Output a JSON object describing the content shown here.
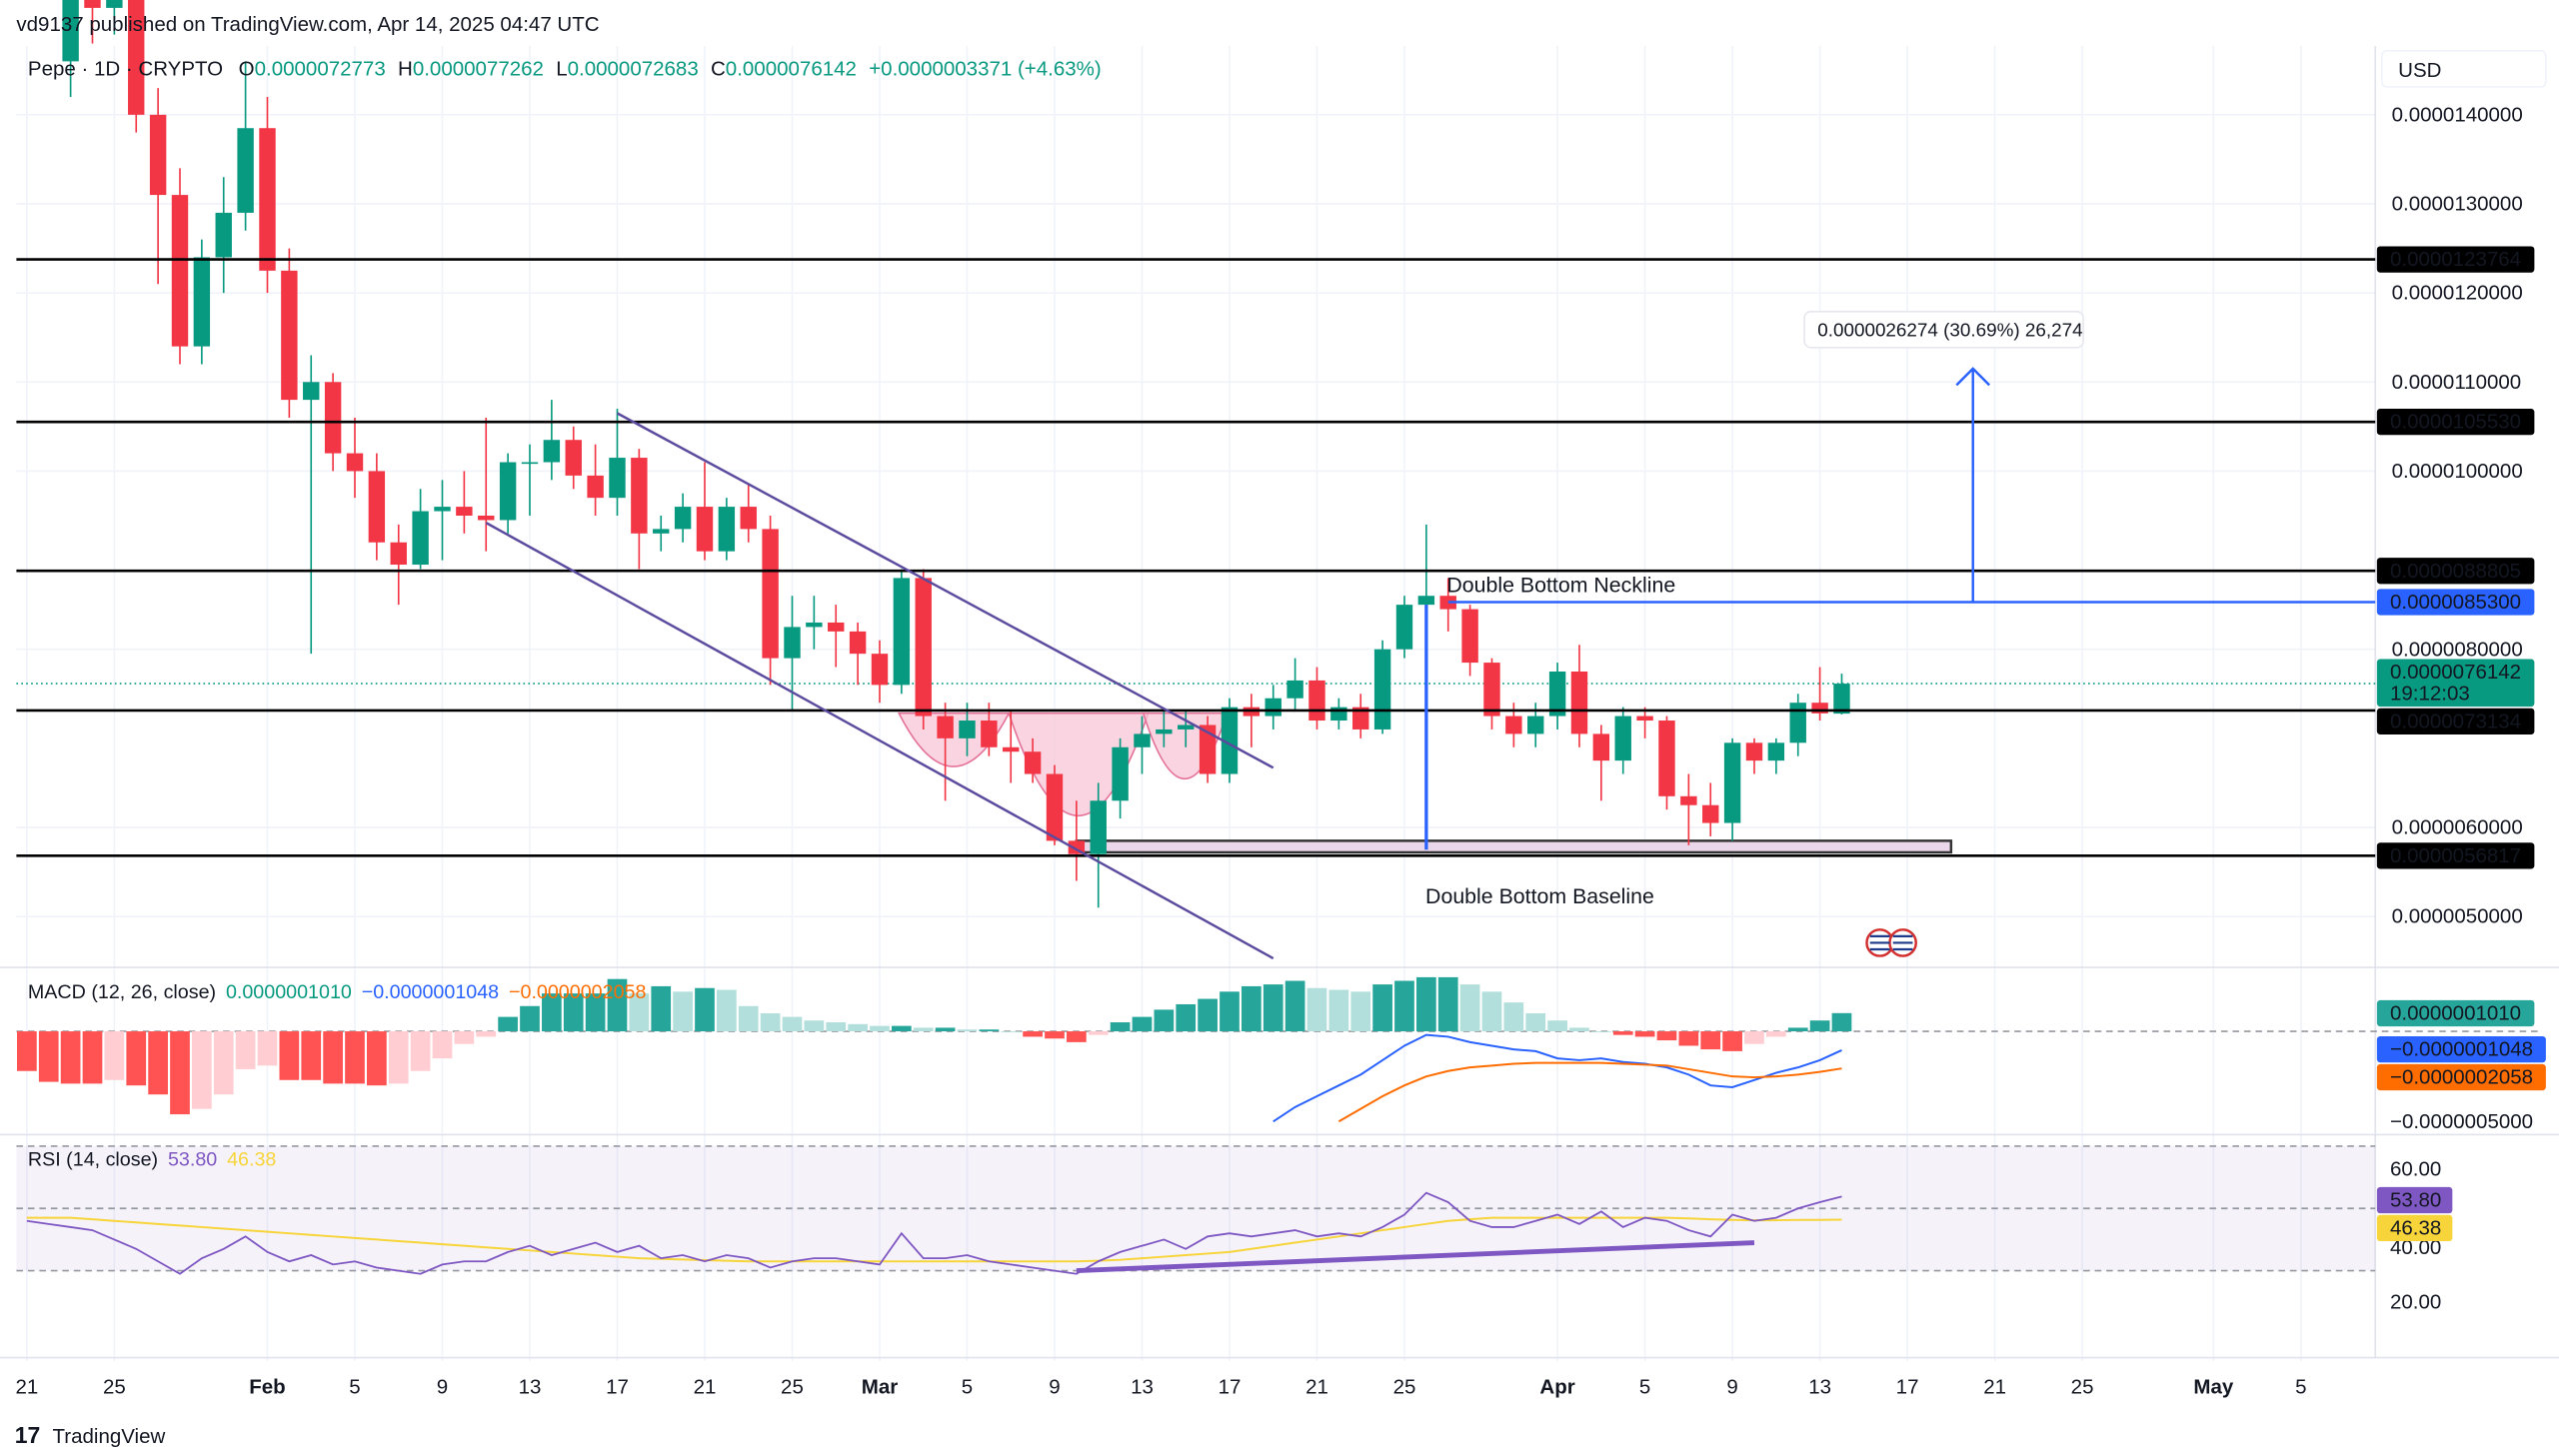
{
  "header": {
    "published": "vd9137 published on TradingView.com, Apr 14, 2025 04:47 UTC",
    "symbol": "Pepe · 1D · CRYPTO",
    "o_label": "O",
    "o_value": "0.0000072773",
    "h_label": "H",
    "h_value": "0.0000077262",
    "l_label": "L",
    "l_value": "0.0000072683",
    "c_label": "C",
    "c_value": "0.0000076142",
    "change": "+0.0000003371 (+4.63%)",
    "currency": "USD"
  },
  "footer": {
    "logo_text": "TradingView"
  },
  "colors": {
    "up": "#089981",
    "down": "#f23645",
    "macd_hist_up_strong": "#26a69a",
    "macd_hist_up_weak": "#b2dfdb",
    "macd_hist_down_strong": "#ff5252",
    "macd_hist_down_weak": "#ffcdd2",
    "macd_line": "#2962ff",
    "signal_line": "#ff6d00",
    "rsi_line": "#7e57c2",
    "rsi_ma": "#f7d53a",
    "drawing_blue": "#2962ff",
    "channel": "#5b4a9e",
    "pattern_fill": "#f8c6d6"
  },
  "annotations": {
    "neckline_label": "Double Bottom Neckline",
    "baseline_label": "Double Bottom Baseline",
    "measure_label": "0.0000026274 (30.69%) 26,274"
  },
  "chart_data": [
    {
      "type": "candlestick",
      "title": "Pepe · 1D · CRYPTO",
      "ylabel": "USD",
      "ylim": [
        4.6e-06,
        1.55e-05
      ],
      "xlim": [
        "2025-01-21",
        "2025-05-08"
      ],
      "y_ticks": [
        "0.0000140000",
        "0.0000130000",
        "0.0000120000",
        "0.0000110000",
        "0.0000100000",
        "0.0000080000",
        "0.0000060000",
        "0.0000050000"
      ],
      "y_tick_values": [
        1.4e-05,
        1.3e-05,
        1.2e-05,
        1.1e-05,
        1e-05,
        8e-06,
        6e-06,
        5e-06
      ],
      "x_ticks": [
        {
          "date": "2025-01-21",
          "label": "21"
        },
        {
          "date": "2025-01-25",
          "label": "25"
        },
        {
          "date": "2025-02-01",
          "label": "Feb"
        },
        {
          "date": "2025-02-05",
          "label": "5"
        },
        {
          "date": "2025-02-09",
          "label": "9"
        },
        {
          "date": "2025-02-13",
          "label": "13"
        },
        {
          "date": "2025-02-17",
          "label": "17"
        },
        {
          "date": "2025-02-21",
          "label": "21"
        },
        {
          "date": "2025-02-25",
          "label": "25"
        },
        {
          "date": "2025-03-01",
          "label": "Mar"
        },
        {
          "date": "2025-03-05",
          "label": "5"
        },
        {
          "date": "2025-03-09",
          "label": "9"
        },
        {
          "date": "2025-03-13",
          "label": "13"
        },
        {
          "date": "2025-03-17",
          "label": "17"
        },
        {
          "date": "2025-03-21",
          "label": "21"
        },
        {
          "date": "2025-03-25",
          "label": "25"
        },
        {
          "date": "2025-04-01",
          "label": "Apr"
        },
        {
          "date": "2025-04-05",
          "label": "5"
        },
        {
          "date": "2025-04-09",
          "label": "9"
        },
        {
          "date": "2025-04-13",
          "label": "13"
        },
        {
          "date": "2025-04-17",
          "label": "17"
        },
        {
          "date": "2025-04-21",
          "label": "21"
        },
        {
          "date": "2025-04-25",
          "label": "25"
        },
        {
          "date": "2025-05-01",
          "label": "May"
        },
        {
          "date": "2025-05-05",
          "label": "5"
        }
      ],
      "grid": true,
      "candles_start": "2025-01-23",
      "candles_ohlc": [
        [
          1.46e-05,
          1.6e-05,
          1.42e-05,
          1.54e-05
        ],
        [
          1.54e-05,
          1.62e-05,
          1.48e-05,
          1.52e-05
        ],
        [
          1.52e-05,
          1.63e-05,
          1.49e-05,
          1.59e-05
        ],
        [
          1.59e-05,
          1.6e-05,
          1.38e-05,
          1.4e-05
        ],
        [
          1.4e-05,
          1.43e-05,
          1.21e-05,
          1.31e-05
        ],
        [
          1.31e-05,
          1.34e-05,
          1.12e-05,
          1.14e-05
        ],
        [
          1.14e-05,
          1.26e-05,
          1.12e-05,
          1.24e-05
        ],
        [
          1.24e-05,
          1.33e-05,
          1.2e-05,
          1.29e-05
        ],
        [
          1.29e-05,
          1.46e-05,
          1.27e-05,
          1.385e-05
        ],
        [
          1.385e-05,
          1.42e-05,
          1.2e-05,
          1.225e-05
        ],
        [
          1.225e-05,
          1.25e-05,
          1.06e-05,
          1.08e-05
        ],
        [
          1.08e-05,
          1.13e-05,
          7.95e-06,
          1.1e-05
        ],
        [
          1.1e-05,
          1.11e-05,
          1e-05,
          1.02e-05
        ],
        [
          1.02e-05,
          1.06e-05,
          9.7e-06,
          1e-05
        ],
        [
          1e-05,
          1.02e-05,
          9e-06,
          9.2e-06
        ],
        [
          9.2e-06,
          9.4e-06,
          8.5e-06,
          8.95e-06
        ],
        [
          8.95e-06,
          9.8e-06,
          8.9e-06,
          9.55e-06
        ],
        [
          9.55e-06,
          9.9e-06,
          9e-06,
          9.6e-06
        ],
        [
          9.6e-06,
          1e-05,
          9.3e-06,
          9.5e-06
        ],
        [
          9.5e-06,
          1.06e-05,
          9.1e-06,
          9.45e-06
        ],
        [
          9.45e-06,
          1.02e-05,
          9.3e-06,
          1.01e-05
        ],
        [
          1.01e-05,
          1.03e-05,
          9.5e-06,
          1.01e-05
        ],
        [
          1.01e-05,
          1.08e-05,
          9.9e-06,
          1.035e-05
        ],
        [
          1.035e-05,
          1.05e-05,
          9.8e-06,
          9.95e-06
        ],
        [
          9.95e-06,
          1.03e-05,
          9.5e-06,
          9.7e-06
        ],
        [
          9.7e-06,
          1.07e-05,
          9.5e-06,
          1.015e-05
        ],
        [
          1.015e-05,
          1.025e-05,
          8.9e-06,
          9.3e-06
        ],
        [
          9.3e-06,
          9.5e-06,
          9.1e-06,
          9.35e-06
        ],
        [
          9.35e-06,
          9.75e-06,
          9.2e-06,
          9.6e-06
        ],
        [
          9.6e-06,
          1.01e-05,
          9e-06,
          9.1e-06
        ],
        [
          9.1e-06,
          9.7e-06,
          9e-06,
          9.6e-06
        ],
        [
          9.6e-06,
          9.85e-06,
          9.2e-06,
          9.35e-06
        ],
        [
          9.35e-06,
          9.5e-06,
          7.6e-06,
          7.9e-06
        ],
        [
          7.9e-06,
          8.6e-06,
          7.3e-06,
          8.25e-06
        ],
        [
          8.25e-06,
          8.6e-06,
          8e-06,
          8.3e-06
        ],
        [
          8.3e-06,
          8.5e-06,
          7.8e-06,
          8.2e-06
        ],
        [
          8.2e-06,
          8.3e-06,
          7.6e-06,
          7.95e-06
        ],
        [
          7.95e-06,
          8.1e-06,
          7.4e-06,
          7.6e-06
        ],
        [
          7.6e-06,
          8.9e-06,
          7.5e-06,
          8.8e-06
        ],
        [
          8.8e-06,
          8.9e-06,
          7.1e-06,
          7.25e-06
        ],
        [
          7.25e-06,
          7.4e-06,
          6.3e-06,
          7e-06
        ],
        [
          7e-06,
          7.4e-06,
          6.8e-06,
          7.2e-06
        ],
        [
          7.2e-06,
          7.4e-06,
          6.8e-06,
          6.9e-06
        ],
        [
          6.9e-06,
          7.3e-06,
          6.5e-06,
          6.85e-06
        ],
        [
          6.85e-06,
          7e-06,
          6.5e-06,
          6.6e-06
        ],
        [
          6.6e-06,
          6.7e-06,
          5.8e-06,
          5.85e-06
        ],
        [
          5.85e-06,
          6.3e-06,
          5.4e-06,
          5.7e-06
        ],
        [
          5.7e-06,
          6.5e-06,
          5.1e-06,
          6.3e-06
        ],
        [
          6.3e-06,
          7e-06,
          6.1e-06,
          6.9e-06
        ],
        [
          6.9e-06,
          7.25e-06,
          6.6e-06,
          7.05e-06
        ],
        [
          7.05e-06,
          7.3e-06,
          6.9e-06,
          7.1e-06
        ],
        [
          7.1e-06,
          7.3e-06,
          6.9e-06,
          7.15e-06
        ],
        [
          7.15e-06,
          7.25e-06,
          6.5e-06,
          6.6e-06
        ],
        [
          6.6e-06,
          7.45e-06,
          6.5e-06,
          7.35e-06
        ],
        [
          7.35e-06,
          7.5e-06,
          6.9e-06,
          7.25e-06
        ],
        [
          7.25e-06,
          7.6e-06,
          7.1e-06,
          7.45e-06
        ],
        [
          7.45e-06,
          7.9e-06,
          7.3e-06,
          7.65e-06
        ],
        [
          7.65e-06,
          7.8e-06,
          7.1e-06,
          7.2e-06
        ],
        [
          7.2e-06,
          7.45e-06,
          7.1e-06,
          7.35e-06
        ],
        [
          7.35e-06,
          7.5e-06,
          7e-06,
          7.1e-06
        ],
        [
          7.1e-06,
          8.1e-06,
          7.05e-06,
          8e-06
        ],
        [
          8e-06,
          8.6e-06,
          7.9e-06,
          8.5e-06
        ],
        [
          8.5e-06,
          9.4e-06,
          8.3e-06,
          8.6e-06
        ],
        [
          8.6e-06,
          8.8e-06,
          8.2e-06,
          8.45e-06
        ],
        [
          8.45e-06,
          8.5e-06,
          7.7e-06,
          7.85e-06
        ],
        [
          7.85e-06,
          7.9e-06,
          7.1e-06,
          7.25e-06
        ],
        [
          7.25e-06,
          7.4e-06,
          6.9e-06,
          7.05e-06
        ],
        [
          7.05e-06,
          7.4e-06,
          6.9e-06,
          7.25e-06
        ],
        [
          7.25e-06,
          7.85e-06,
          7.1e-06,
          7.75e-06
        ],
        [
          7.75e-06,
          8.05e-06,
          6.9e-06,
          7.05e-06
        ],
        [
          7.05e-06,
          7.15e-06,
          6.3e-06,
          6.75e-06
        ],
        [
          6.75e-06,
          7.35e-06,
          6.6e-06,
          7.25e-06
        ],
        [
          7.25e-06,
          7.35e-06,
          7e-06,
          7.2e-06
        ],
        [
          7.2e-06,
          7.25e-06,
          6.2e-06,
          6.35e-06
        ],
        [
          6.35e-06,
          6.6e-06,
          5.8e-06,
          6.25e-06
        ],
        [
          6.25e-06,
          6.5e-06,
          5.9e-06,
          6.05e-06
        ],
        [
          6.05e-06,
          7e-06,
          5.85e-06,
          6.95e-06
        ],
        [
          6.95e-06,
          7e-06,
          6.6e-06,
          6.75e-06
        ],
        [
          6.75e-06,
          7e-06,
          6.6e-06,
          6.95e-06
        ],
        [
          6.95e-06,
          7.5e-06,
          6.8e-06,
          7.4e-06
        ],
        [
          7.4e-06,
          7.8e-06,
          7.2e-06,
          7.28e-06
        ],
        [
          7.2773e-06,
          7.7262e-06,
          7.2683e-06,
          7.6142e-06
        ]
      ],
      "current_price": {
        "value": 7.6142e-06,
        "label": "0.0000076142",
        "countdown": "19:12:03"
      },
      "horizontal_levels": [
        {
          "value": 1.23764e-05,
          "label": "0.0000123764",
          "color": "#000000"
        },
        {
          "value": 1.0553e-05,
          "label": "0.0000105530",
          "color": "#000000"
        },
        {
          "value": 8.8805e-06,
          "label": "0.0000088805",
          "color": "#000000"
        },
        {
          "value": 7.3134e-06,
          "label": "0.0000073134",
          "color": "#000000"
        },
        {
          "value": 5.6817e-06,
          "label": "0.0000056817",
          "color": "#000000"
        }
      ],
      "neckline": {
        "value": 8.53e-06,
        "label": "0.0000085300",
        "from": "2025-03-27"
      },
      "channel": {
        "upper": [
          [
            "2025-02-17",
            1.065e-05
          ],
          [
            "2025-03-19",
            6.67e-06
          ]
        ],
        "lower": [
          [
            "2025-02-11",
            9.42e-06
          ],
          [
            "2025-03-19",
            4.53e-06
          ]
        ]
      },
      "measure": {
        "date": "2025-04-20",
        "from": 8.53e-06,
        "to": 1.115e-05
      },
      "pattern_height": {
        "date": "2025-03-26",
        "from": 5.75e-06,
        "to": 8.5e-06
      },
      "baseline_box": {
        "from": "2025-03-10",
        "to": "2025-04-19",
        "top": 5.85e-06,
        "bottom": 5.72e-06
      }
    },
    {
      "type": "macd",
      "title": "MACD (12, 26, close)",
      "legend_values": [
        "0.0000001010",
        "−0.0000001048",
        "−0.0000002058"
      ],
      "axis_labels": [
        "0.0000001010",
        "−0.0000001048",
        "−0.0000002058",
        "−0.0000005000"
      ],
      "ylim": [
        -6e-07,
        3.5e-07
      ],
      "histogram_start": "2025-01-21",
      "histogram": [
        -2.2e-07,
        -2.8e-07,
        -2.9e-07,
        -2.9e-07,
        -2.7e-07,
        -3e-07,
        -3.5e-07,
        -4.6e-07,
        -4.3e-07,
        -3.5e-07,
        -2.1e-07,
        -1.9e-07,
        -2.7e-07,
        -2.7e-07,
        -2.9e-07,
        -2.9e-07,
        -3e-07,
        -2.9e-07,
        -2.2e-07,
        -1.5e-07,
        -7e-08,
        -3e-08,
        8e-08,
        1.4e-07,
        2.1e-07,
        2.1e-07,
        2.1e-07,
        2.9e-07,
        2.1e-07,
        2.5e-07,
        2.2e-07,
        2.4e-07,
        2.3e-07,
        1.4e-07,
        1e-07,
        8e-08,
        6e-08,
        5e-08,
        4e-08,
        3e-08,
        3e-08,
        2e-08,
        2e-08,
        1e-08,
        1e-08,
        0.0,
        -3e-08,
        -4e-08,
        -6e-08,
        -2e-08,
        5e-08,
        8e-08,
        1.2e-07,
        1.5e-07,
        1.8e-07,
        2.2e-07,
        2.5e-07,
        2.6e-07,
        2.8e-07,
        2.4e-07,
        2.3e-07,
        2.2e-07,
        2.6e-07,
        2.8e-07,
        3e-07,
        3e-07,
        2.6e-07,
        2.2e-07,
        1.6e-07,
        1e-07,
        6e-08,
        2e-08,
        0.0,
        -2e-08,
        -3e-08,
        -5e-08,
        -8e-08,
        -1e-07,
        -1.1e-07,
        -7e-08,
        -3e-08,
        2e-08,
        6e-08,
        1.01e-07
      ],
      "lines_start": "2025-03-15",
      "macd": [
        -7.5e-07,
        -7e-07,
        -6.5e-07,
        -5.8e-07,
        -5e-07,
        -4.2e-07,
        -3.6e-07,
        -3e-07,
        -2.4e-07,
        -1.6e-07,
        -8e-08,
        -2e-08,
        -3e-08,
        -6e-08,
        -8e-08,
        -1e-07,
        -1.1e-07,
        -1.5e-07,
        -1.6e-07,
        -1.5e-07,
        -1.7e-07,
        -1.8e-07,
        -2e-07,
        -2.4e-07,
        -3e-07,
        -3.1e-07,
        -2.7e-07,
        -2.3e-07,
        -2e-07,
        -1.6e-07,
        -1.048e-07
      ],
      "signal": [
        -9e-07,
        -8.5e-07,
        -8e-07,
        -7.5e-07,
        -7e-07,
        -6.5e-07,
        -5.8e-07,
        -5e-07,
        -4.3e-07,
        -3.6e-07,
        -3e-07,
        -2.5e-07,
        -2.2e-07,
        -2e-07,
        -1.9e-07,
        -1.8e-07,
        -1.75e-07,
        -1.75e-07,
        -1.75e-07,
        -1.75e-07,
        -1.8e-07,
        -1.85e-07,
        -1.9e-07,
        -2.1e-07,
        -2.3e-07,
        -2.5e-07,
        -2.55e-07,
        -2.5e-07,
        -2.4e-07,
        -2.25e-07,
        -2.058e-07
      ]
    },
    {
      "type": "rsi",
      "title": "RSI (14, close)",
      "legend_values": [
        "53.80",
        "46.38"
      ],
      "axis_labels": [
        "60.00",
        "40.00",
        "20.00"
      ],
      "axis_values": [
        60,
        40,
        20
      ],
      "bands": [
        70,
        50,
        30
      ],
      "start": "2025-01-21",
      "rsi": [
        46,
        45,
        44,
        43,
        40,
        37,
        33,
        29,
        34,
        37,
        41,
        36,
        33,
        35,
        32,
        33,
        31,
        30,
        29,
        32,
        33,
        33,
        36,
        38,
        35,
        37,
        39,
        36,
        38,
        34,
        35,
        33,
        35,
        34,
        31,
        33,
        34,
        34,
        33,
        32,
        42,
        34,
        34,
        35,
        33,
        32,
        31,
        30,
        29,
        33,
        36,
        38,
        40,
        37,
        41,
        42,
        41,
        42,
        43,
        41,
        42,
        41,
        44,
        48,
        55,
        52,
        46,
        44,
        44,
        46,
        48,
        45,
        49,
        44,
        47,
        46,
        43,
        41,
        48,
        46,
        47,
        50,
        52,
        53.8
      ],
      "rsi_ma": [
        47,
        47,
        47,
        46.5,
        46,
        45.5,
        45,
        44.5,
        44,
        43.5,
        43,
        42.5,
        42,
        41.5,
        41,
        40.5,
        40,
        39.5,
        39,
        38.5,
        38,
        37.5,
        37,
        36.5,
        36,
        35.5,
        35,
        34.5,
        34,
        33.8,
        33.6,
        33.4,
        33.2,
        33,
        33,
        33,
        33,
        33,
        33,
        33,
        33,
        33,
        33,
        33,
        33,
        33,
        33,
        33,
        33,
        33.2,
        33.5,
        34,
        34.5,
        35,
        35.5,
        36,
        37,
        38,
        39,
        40,
        41,
        42,
        43,
        44,
        45,
        46,
        46.5,
        47,
        47,
        47,
        47,
        47,
        47,
        47,
        47,
        47,
        46.8,
        46.5,
        46.3,
        46.2,
        46.2,
        46.3,
        46.3,
        46.38
      ],
      "trendline": [
        [
          "2025-03-10",
          30
        ],
        [
          "2025-04-10",
          39
        ]
      ]
    }
  ]
}
